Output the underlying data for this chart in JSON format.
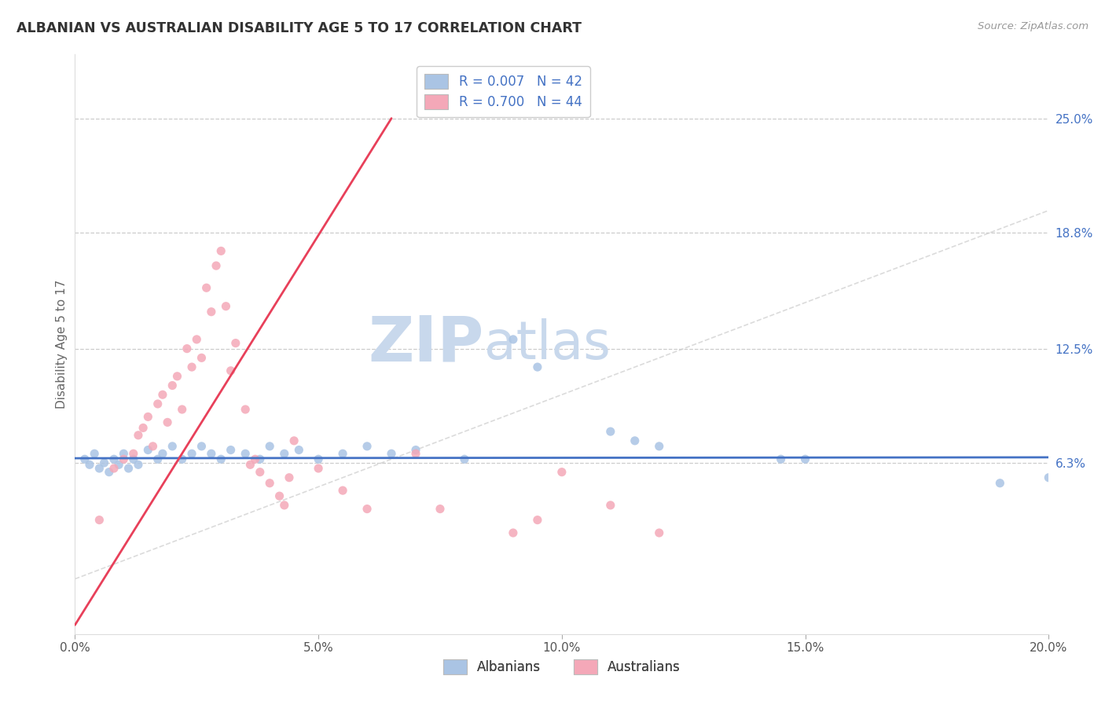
{
  "title": "ALBANIAN VS AUSTRALIAN DISABILITY AGE 5 TO 17 CORRELATION CHART",
  "source_text": "Source: ZipAtlas.com",
  "ylabel": "Disability Age 5 to 17",
  "xlim": [
    0.0,
    0.2
  ],
  "ylim": [
    -0.03,
    0.285
  ],
  "xticks": [
    0.0,
    0.05,
    0.1,
    0.15,
    0.2
  ],
  "xticklabels": [
    "0.0%",
    "5.0%",
    "10.0%",
    "15.0%",
    "20.0%"
  ],
  "yticks_right": [
    0.063,
    0.125,
    0.188,
    0.25
  ],
  "yticklabels_right": [
    "6.3%",
    "12.5%",
    "18.8%",
    "25.0%"
  ],
  "legend_blue_label": "R = 0.007   N = 42",
  "legend_pink_label": "R = 0.700   N = 44",
  "legend_bottom_blue": "Albanians",
  "legend_bottom_pink": "Australians",
  "blue_color": "#aac4e4",
  "pink_color": "#f4a8b8",
  "trendline_blue_color": "#4472c4",
  "trendline_pink_color": "#e8405a",
  "diag_line_color": "#cccccc",
  "watermark_zip": "ZIP",
  "watermark_atlas": "atlas",
  "watermark_color_zip": "#c8d8ec",
  "watermark_color_atlas": "#c8d8ec",
  "blue_scatter": [
    [
      0.002,
      0.065
    ],
    [
      0.003,
      0.062
    ],
    [
      0.004,
      0.068
    ],
    [
      0.005,
      0.06
    ],
    [
      0.006,
      0.063
    ],
    [
      0.007,
      0.058
    ],
    [
      0.008,
      0.065
    ],
    [
      0.009,
      0.062
    ],
    [
      0.01,
      0.068
    ],
    [
      0.011,
      0.06
    ],
    [
      0.012,
      0.065
    ],
    [
      0.013,
      0.062
    ],
    [
      0.015,
      0.07
    ],
    [
      0.017,
      0.065
    ],
    [
      0.018,
      0.068
    ],
    [
      0.02,
      0.072
    ],
    [
      0.022,
      0.065
    ],
    [
      0.024,
      0.068
    ],
    [
      0.026,
      0.072
    ],
    [
      0.028,
      0.068
    ],
    [
      0.03,
      0.065
    ],
    [
      0.032,
      0.07
    ],
    [
      0.035,
      0.068
    ],
    [
      0.038,
      0.065
    ],
    [
      0.04,
      0.072
    ],
    [
      0.043,
      0.068
    ],
    [
      0.046,
      0.07
    ],
    [
      0.05,
      0.065
    ],
    [
      0.055,
      0.068
    ],
    [
      0.06,
      0.072
    ],
    [
      0.065,
      0.068
    ],
    [
      0.07,
      0.07
    ],
    [
      0.08,
      0.065
    ],
    [
      0.09,
      0.13
    ],
    [
      0.095,
      0.115
    ],
    [
      0.11,
      0.08
    ],
    [
      0.115,
      0.075
    ],
    [
      0.12,
      0.072
    ],
    [
      0.145,
      0.065
    ],
    [
      0.15,
      0.065
    ],
    [
      0.19,
      0.052
    ],
    [
      0.2,
      0.055
    ]
  ],
  "pink_scatter": [
    [
      0.005,
      0.032
    ],
    [
      0.008,
      0.06
    ],
    [
      0.01,
      0.065
    ],
    [
      0.012,
      0.068
    ],
    [
      0.013,
      0.078
    ],
    [
      0.014,
      0.082
    ],
    [
      0.015,
      0.088
    ],
    [
      0.016,
      0.072
    ],
    [
      0.017,
      0.095
    ],
    [
      0.018,
      0.1
    ],
    [
      0.019,
      0.085
    ],
    [
      0.02,
      0.105
    ],
    [
      0.021,
      0.11
    ],
    [
      0.022,
      0.092
    ],
    [
      0.023,
      0.125
    ],
    [
      0.024,
      0.115
    ],
    [
      0.025,
      0.13
    ],
    [
      0.026,
      0.12
    ],
    [
      0.027,
      0.158
    ],
    [
      0.028,
      0.145
    ],
    [
      0.029,
      0.17
    ],
    [
      0.03,
      0.178
    ],
    [
      0.031,
      0.148
    ],
    [
      0.032,
      0.113
    ],
    [
      0.033,
      0.128
    ],
    [
      0.035,
      0.092
    ],
    [
      0.036,
      0.062
    ],
    [
      0.037,
      0.065
    ],
    [
      0.038,
      0.058
    ],
    [
      0.04,
      0.052
    ],
    [
      0.042,
      0.045
    ],
    [
      0.043,
      0.04
    ],
    [
      0.044,
      0.055
    ],
    [
      0.045,
      0.075
    ],
    [
      0.05,
      0.06
    ],
    [
      0.055,
      0.048
    ],
    [
      0.06,
      0.038
    ],
    [
      0.07,
      0.068
    ],
    [
      0.075,
      0.038
    ],
    [
      0.09,
      0.025
    ],
    [
      0.095,
      0.032
    ],
    [
      0.1,
      0.058
    ],
    [
      0.11,
      0.04
    ],
    [
      0.12,
      0.025
    ]
  ],
  "blue_trendline": [
    [
      0.0,
      0.0655
    ],
    [
      0.2,
      0.066
    ]
  ],
  "pink_trendline": [
    [
      0.0,
      -0.025
    ],
    [
      0.065,
      0.25
    ]
  ]
}
